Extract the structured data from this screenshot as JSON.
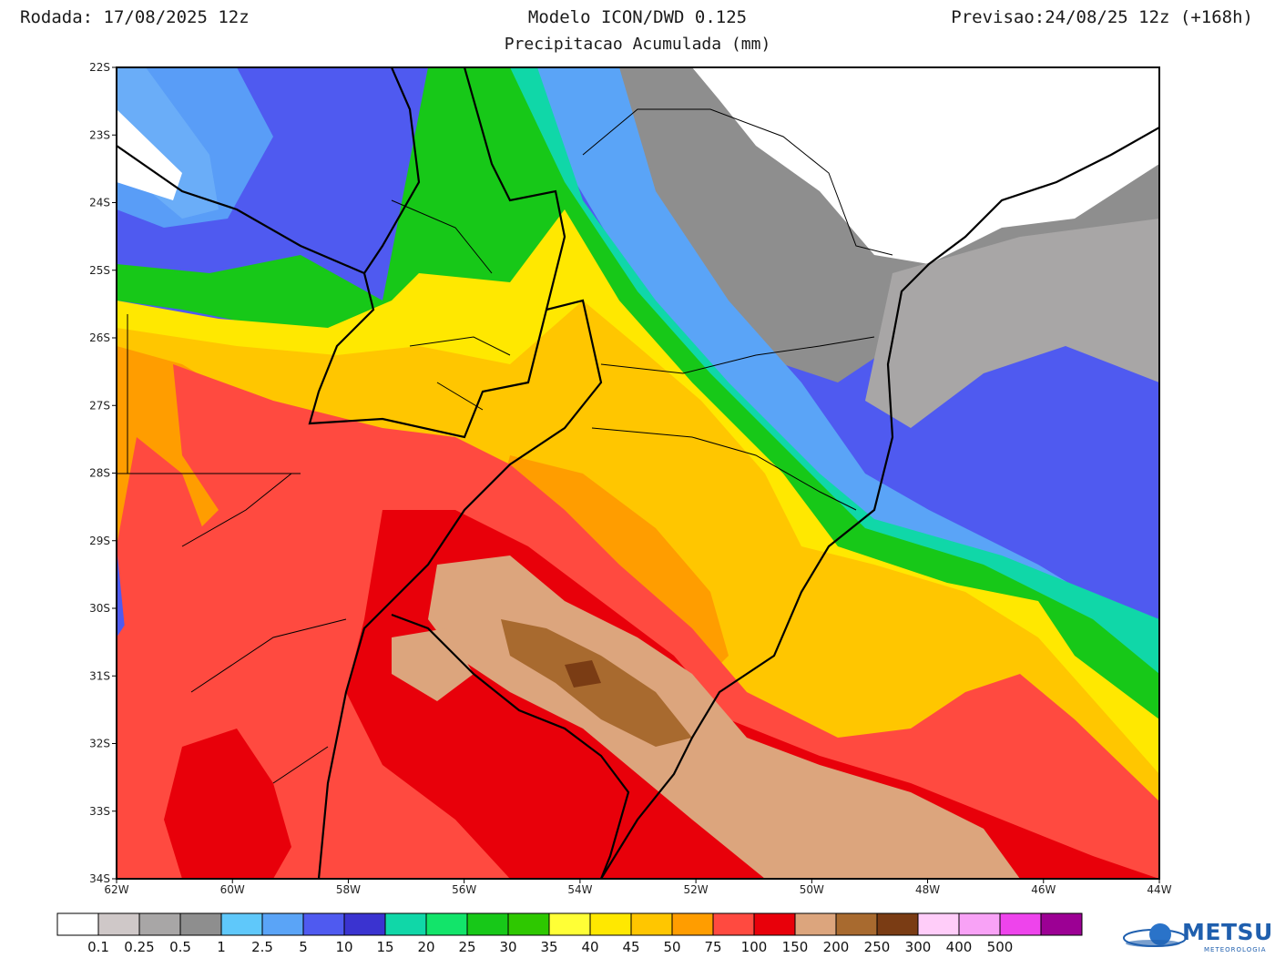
{
  "header": {
    "run": "Rodada: 17/08/2025 12z",
    "model": "Modelo ICON/DWD 0.125",
    "subtitle": "Precipitacao Acumulada (mm)",
    "forecast": "Previsao:24/08/25 12z (+168h)"
  },
  "map": {
    "lon_range": [
      -62,
      -44
    ],
    "lat_range": [
      -34,
      -22
    ],
    "lon_ticks": [
      "62W",
      "60W",
      "58W",
      "56W",
      "54W",
      "52W",
      "50W",
      "48W",
      "46W",
      "44W"
    ],
    "lat_ticks": [
      "22S",
      "23S",
      "24S",
      "25S",
      "26S",
      "27S",
      "28S",
      "29S",
      "30S",
      "31S",
      "32S",
      "33S",
      "34S"
    ]
  },
  "legend": {
    "colors": [
      "#ffffff",
      "#cfc8c8",
      "#a8a6a6",
      "#8e8e8e",
      "#5fc8fa",
      "#5aa4f7",
      "#4f5af0",
      "#3a33d0",
      "#10d7a8",
      "#12e46a",
      "#17c818",
      "#2ec800",
      "#ffff36",
      "#ffe800",
      "#ffc600",
      "#ff9d00",
      "#ff4a40",
      "#e8000a",
      "#dca57d",
      "#a86a2f",
      "#7a3c14",
      "#ffcdf9",
      "#f8a2f6",
      "#ee44ec",
      "#9c0094"
    ],
    "labels": [
      "0.1",
      "0.25",
      "0.5",
      "1",
      "2.5",
      "5",
      "10",
      "15",
      "20",
      "25",
      "30",
      "35",
      "40",
      "45",
      "50",
      "75",
      "100",
      "150",
      "200",
      "250",
      "300",
      "400",
      "500"
    ]
  },
  "logo": {
    "text": "METSUL",
    "sub": "METEOROLOGIA"
  }
}
